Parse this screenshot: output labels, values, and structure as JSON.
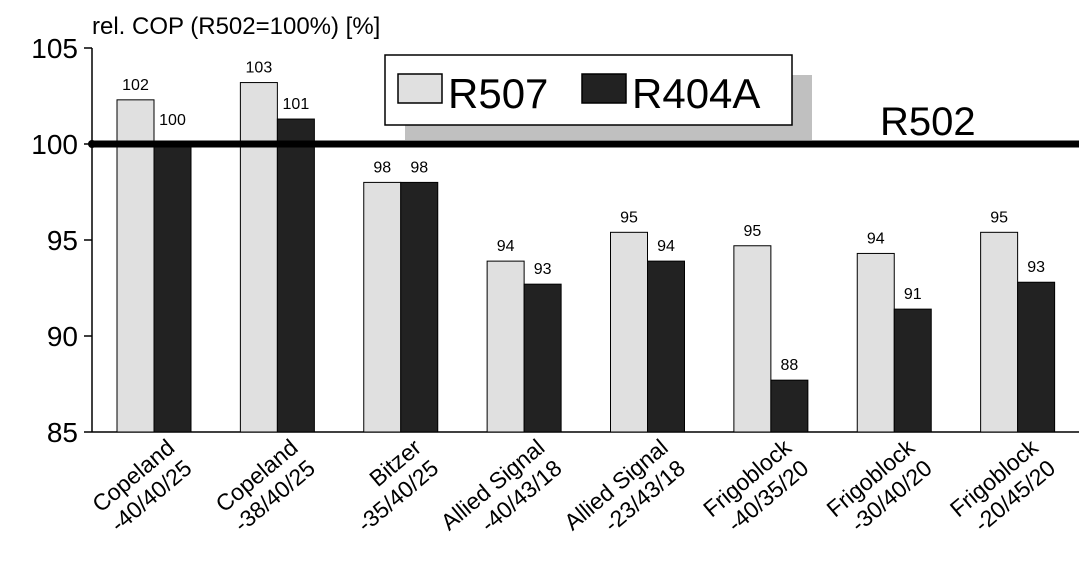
{
  "chart_data": {
    "type": "bar",
    "title": "",
    "ylabel": "rel. COP (R502=100%) [%]",
    "xlabel": "",
    "ylim": [
      85,
      105
    ],
    "yticks": [
      85,
      90,
      95,
      100,
      105
    ],
    "categories": [
      [
        "Copeland",
        "-40/40/25"
      ],
      [
        "Copeland",
        "-38/40/25"
      ],
      [
        "Bitzer",
        "-35/40/25"
      ],
      [
        "Allied Signal",
        "-40/43/18"
      ],
      [
        "Allied Signal",
        "-23/43/18"
      ],
      [
        "Frigoblock",
        "-40/35/20"
      ],
      [
        "Frigoblock",
        "-30/40/20"
      ],
      [
        "Frigoblock",
        "-20/45/20"
      ]
    ],
    "series": [
      {
        "name": "R507",
        "color": "#e0e0e0",
        "values": [
          102.3,
          103.2,
          98.0,
          93.9,
          95.4,
          94.7,
          94.3,
          95.4
        ],
        "labels": [
          "102",
          "103",
          "98",
          "94",
          "95",
          "95",
          "94",
          "95"
        ]
      },
      {
        "name": "R404A",
        "color": "#222222",
        "values": [
          100.0,
          101.3,
          98.0,
          92.7,
          93.9,
          87.7,
          91.4,
          92.8
        ],
        "labels": [
          "100",
          "101",
          "98",
          "93",
          "94",
          "88",
          "91",
          "93"
        ]
      }
    ],
    "reference_line": {
      "name": "R502",
      "value": 100
    },
    "legend": "top-center",
    "grid": false
  }
}
